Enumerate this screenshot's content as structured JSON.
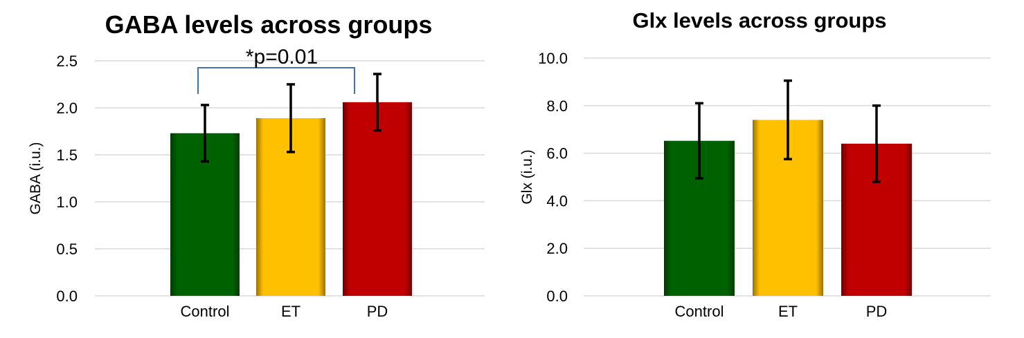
{
  "colors": {
    "Control": "#006100",
    "ET": "#FFC000",
    "PD": "#C00000",
    "bracket": "#4472A8",
    "grid": "#D9D9D9"
  },
  "chart_data": [
    {
      "type": "bar",
      "title": "GABA levels across groups",
      "xlabel": "",
      "ylabel": "GABA (i.u.)",
      "categories": [
        "Control",
        "ET",
        "PD"
      ],
      "values": [
        1.73,
        1.89,
        2.06
      ],
      "error": [
        0.3,
        0.36,
        0.3
      ],
      "ylim": [
        0,
        2.5
      ],
      "yticks": [
        "0.0",
        "0.5",
        "1.0",
        "1.5",
        "2.0",
        "2.5"
      ],
      "grid": true,
      "annotation": {
        "text": "*p=0.01",
        "from": "Control",
        "to": "PD"
      }
    },
    {
      "type": "bar",
      "title": "Glx levels across groups",
      "xlabel": "",
      "ylabel": "Glx (i.u.)",
      "categories": [
        "Control",
        "ET",
        "PD"
      ],
      "values": [
        6.52,
        7.4,
        6.4
      ],
      "error": [
        1.58,
        1.65,
        1.6
      ],
      "ylim": [
        0,
        10
      ],
      "yticks": [
        "0.0",
        "2.0",
        "4.0",
        "6.0",
        "8.0",
        "10.0"
      ],
      "grid": true
    }
  ]
}
